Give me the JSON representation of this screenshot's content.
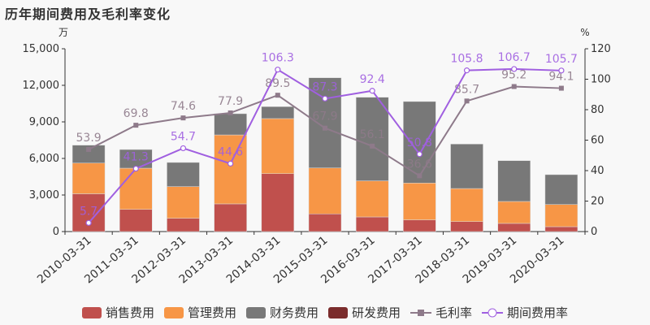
{
  "title": "历年期间费用及毛利率变化",
  "chart_data": {
    "type": "bar",
    "title": "历年期间费用及毛利率变化",
    "left_unit": "万",
    "right_unit": "%",
    "categories": [
      "2010-03-31",
      "2011-03-31",
      "2012-03-31",
      "2013-03-31",
      "2014-03-31",
      "2015-03-31",
      "2016-03-31",
      "2017-03-31",
      "2018-03-31",
      "2019-03-31",
      "2020-03-31"
    ],
    "left_axis": {
      "ylim": [
        0,
        15000
      ],
      "ticks": [
        "0",
        "3,000",
        "6,000",
        "9,000",
        "12,000",
        "15,000"
      ]
    },
    "right_axis": {
      "ylim": [
        0,
        120
      ],
      "ticks": [
        "0",
        "20",
        "40",
        "60",
        "80",
        "100",
        "120"
      ]
    },
    "series": [
      {
        "name": "销售费用",
        "type": "bar",
        "stack": true,
        "color": "#c0504d",
        "values": [
          3100,
          1820,
          1090,
          2270,
          4750,
          1450,
          1200,
          960,
          820,
          670,
          400
        ]
      },
      {
        "name": "管理费用",
        "type": "bar",
        "stack": true,
        "color": "#f79646",
        "values": [
          2520,
          3380,
          2600,
          5660,
          4520,
          3770,
          2960,
          3020,
          2710,
          1800,
          1820
        ]
      },
      {
        "name": "财务费用",
        "type": "bar",
        "stack": true,
        "color": "#787878",
        "values": [
          1470,
          1530,
          1980,
          1740,
          980,
          7400,
          6860,
          6690,
          3650,
          3350,
          2450
        ]
      },
      {
        "name": "研发费用",
        "type": "bar",
        "stack": true,
        "color": "#7b2c2c",
        "values": [
          0,
          0,
          0,
          0,
          0,
          0,
          0,
          0,
          0,
          0,
          0
        ]
      },
      {
        "name": "毛利率",
        "type": "line",
        "axis": "right",
        "color": "#8e7a8a",
        "values": [
          53.9,
          69.8,
          74.6,
          77.9,
          89.5,
          67.9,
          56.1,
          36.6,
          85.7,
          95.2,
          94.1
        ],
        "labels": [
          "53.9",
          "69.8",
          "74.6",
          "77.9",
          "89.5",
          "67.9",
          "56.1",
          "36.6",
          "85.7",
          "95.2",
          "94.1"
        ]
      },
      {
        "name": "期间费用率",
        "type": "line",
        "axis": "right",
        "color": "#a05fe0",
        "values": [
          5.7,
          41.3,
          54.7,
          44.6,
          106.3,
          87.3,
          92.4,
          50.8,
          105.8,
          106.7,
          105.7
        ],
        "labels": [
          "5.7",
          "41.3",
          "54.7",
          "44.6",
          "106.3",
          "87.3",
          "92.4",
          "50.8",
          "105.8",
          "106.7",
          "105.7"
        ]
      }
    ],
    "legend": "bottom",
    "grid": false
  }
}
